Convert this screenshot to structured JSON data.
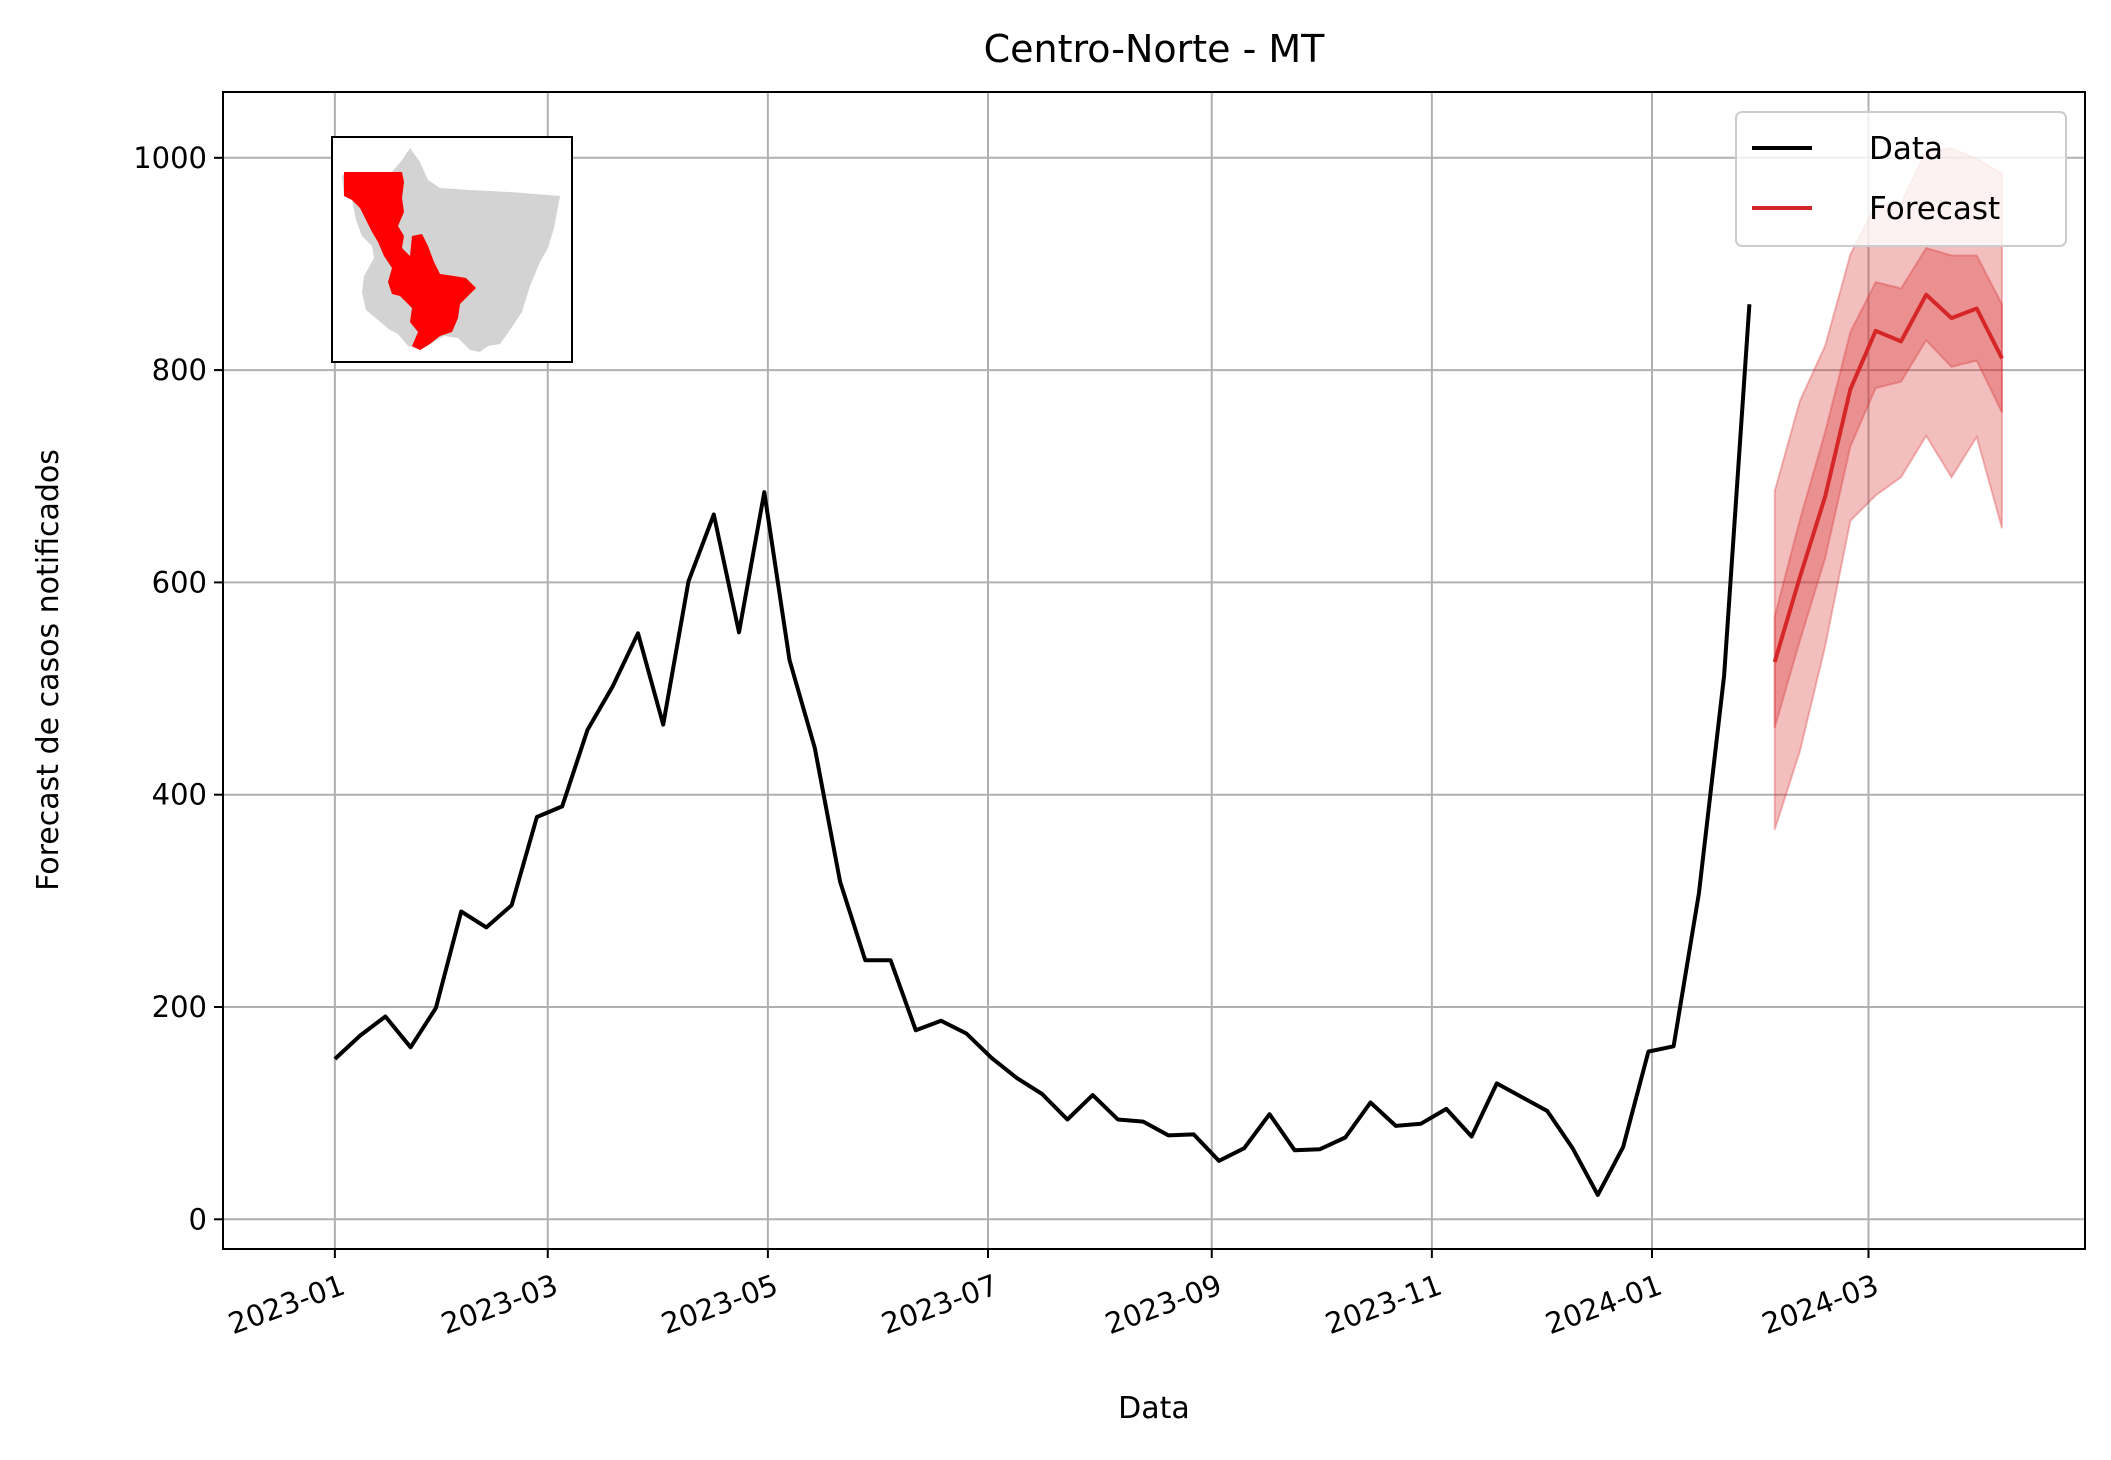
{
  "chart_data": {
    "type": "line",
    "title": "Centro-Norte - MT",
    "xlabel": "Data",
    "ylabel": "Forecast de casos notificados",
    "x_ticks": [
      "2023-01",
      "2023-03",
      "2023-05",
      "2023-07",
      "2023-09",
      "2023-11",
      "2024-01",
      "2024-03"
    ],
    "y_ticks": [
      0,
      200,
      400,
      600,
      800,
      1000
    ],
    "xlim": [
      "2022-12-01",
      "2024-04-30"
    ],
    "ylim": [
      -28,
      1062
    ],
    "grid": true,
    "legend_position": "top-right",
    "inset_map": "Mato Grosso state map with Centro-Norte region highlighted in red",
    "series": [
      {
        "name": "Data",
        "color": "#000000",
        "x": [
          "2023-01-01",
          "2023-01-08",
          "2023-01-15",
          "2023-01-22",
          "2023-01-29",
          "2023-02-05",
          "2023-02-12",
          "2023-02-19",
          "2023-02-26",
          "2023-03-05",
          "2023-03-12",
          "2023-03-19",
          "2023-03-26",
          "2023-04-02",
          "2023-04-09",
          "2023-04-16",
          "2023-04-23",
          "2023-04-30",
          "2023-05-07",
          "2023-05-14",
          "2023-05-21",
          "2023-05-28",
          "2023-06-04",
          "2023-06-11",
          "2023-06-18",
          "2023-06-25",
          "2023-07-02",
          "2023-07-09",
          "2023-07-16",
          "2023-07-23",
          "2023-07-30",
          "2023-08-06",
          "2023-08-13",
          "2023-08-20",
          "2023-08-27",
          "2023-09-03",
          "2023-09-10",
          "2023-09-17",
          "2023-09-24",
          "2023-10-01",
          "2023-10-08",
          "2023-10-15",
          "2023-10-22",
          "2023-10-29",
          "2023-11-05",
          "2023-11-12",
          "2023-11-19",
          "2023-11-26",
          "2023-12-03",
          "2023-12-10",
          "2023-12-17",
          "2023-12-24",
          "2023-12-31",
          "2024-01-07",
          "2024-01-14",
          "2024-01-21",
          "2024-01-28"
        ],
        "values": [
          151,
          173,
          191,
          162,
          199,
          290,
          275,
          296,
          379,
          389,
          461,
          502,
          552,
          466,
          601,
          664,
          553,
          685,
          527,
          444,
          318,
          244,
          244,
          178,
          187,
          175,
          152,
          133,
          118,
          94,
          117,
          94,
          92,
          79,
          80,
          55,
          67,
          99,
          65,
          66,
          77,
          110,
          88,
          90,
          104,
          78,
          128,
          115,
          102,
          67,
          23,
          68,
          158,
          163,
          307,
          512,
          862
        ]
      },
      {
        "name": "Forecast",
        "color": "#d62728",
        "x": [
          "2024-02-04",
          "2024-02-11",
          "2024-02-18",
          "2024-02-25",
          "2024-03-03",
          "2024-03-10",
          "2024-03-17",
          "2024-03-24",
          "2024-03-31",
          "2024-04-07"
        ],
        "values": [
          525,
          605,
          681,
          782,
          837,
          827,
          871,
          849,
          858,
          811
        ],
        "band_inner_lower": [
          463,
          545,
          623,
          728,
          783,
          789,
          828,
          803,
          809,
          760
        ],
        "band_inner_upper": [
          568,
          659,
          742,
          836,
          883,
          877,
          915,
          908,
          908,
          862
        ],
        "band_outer_lower": [
          367,
          441,
          540,
          658,
          682,
          699,
          738,
          699,
          737,
          651
        ],
        "band_outer_upper": [
          686,
          771,
          823,
          909,
          955,
          957,
          1006,
          1009,
          999,
          985
        ]
      }
    ]
  }
}
